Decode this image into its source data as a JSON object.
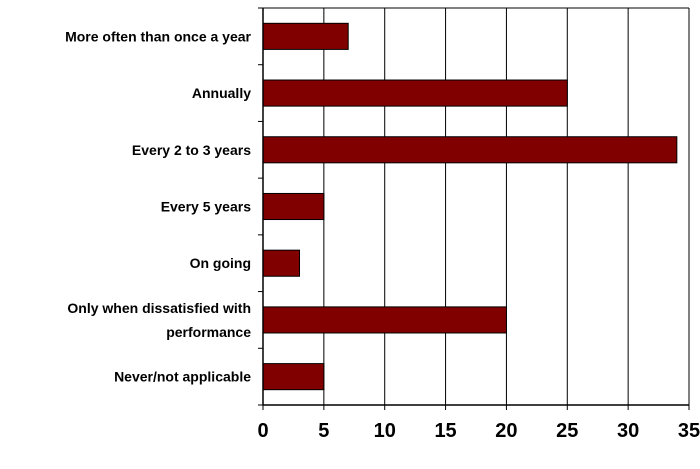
{
  "chart_data": {
    "type": "bar",
    "orientation": "horizontal",
    "categories": [
      [
        "More often than once a year"
      ],
      [
        "Annually"
      ],
      [
        "Every 2 to 3 years"
      ],
      [
        "Every 5 years"
      ],
      [
        "On going"
      ],
      [
        "Only when dissatisfied with",
        "performance"
      ],
      [
        "Never/not applicable"
      ]
    ],
    "values": [
      7,
      25,
      34,
      5,
      3,
      20,
      5
    ],
    "xlim": [
      0,
      35
    ],
    "xticks": [
      "0",
      "5",
      "10",
      "15",
      "20",
      "25",
      "30",
      "35"
    ],
    "title": "",
    "xlabel": "",
    "ylabel": "",
    "grid": "vertical",
    "legend": "none",
    "colors": {
      "bar_fill": "#800000",
      "bar_stroke": "#000000",
      "grid": "#000000",
      "axis": "#000000"
    }
  }
}
